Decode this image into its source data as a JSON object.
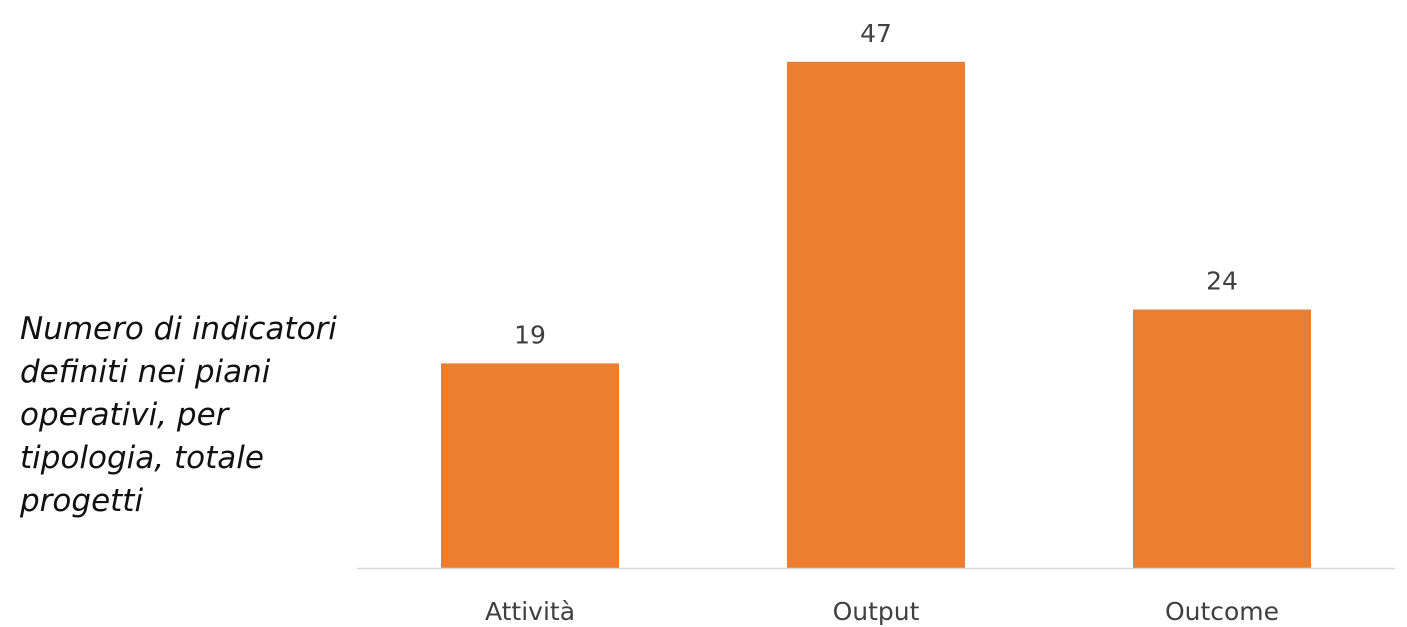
{
  "side_text": "Numero di indicatori\ndefiniti nei piani\noperativi, per\ntipologia, totale\nprogetti",
  "chart_data": {
    "type": "bar",
    "categories": [
      "Attività",
      "Output",
      "Outcome"
    ],
    "values": [
      19,
      47,
      24
    ],
    "title": "",
    "xlabel": "",
    "ylabel": "",
    "ylim": [
      0,
      50
    ],
    "grid": false,
    "legend": "none",
    "colors": {
      "bar": "#ED7D31",
      "axis": "#D9D9D9",
      "text": "#404040"
    }
  }
}
